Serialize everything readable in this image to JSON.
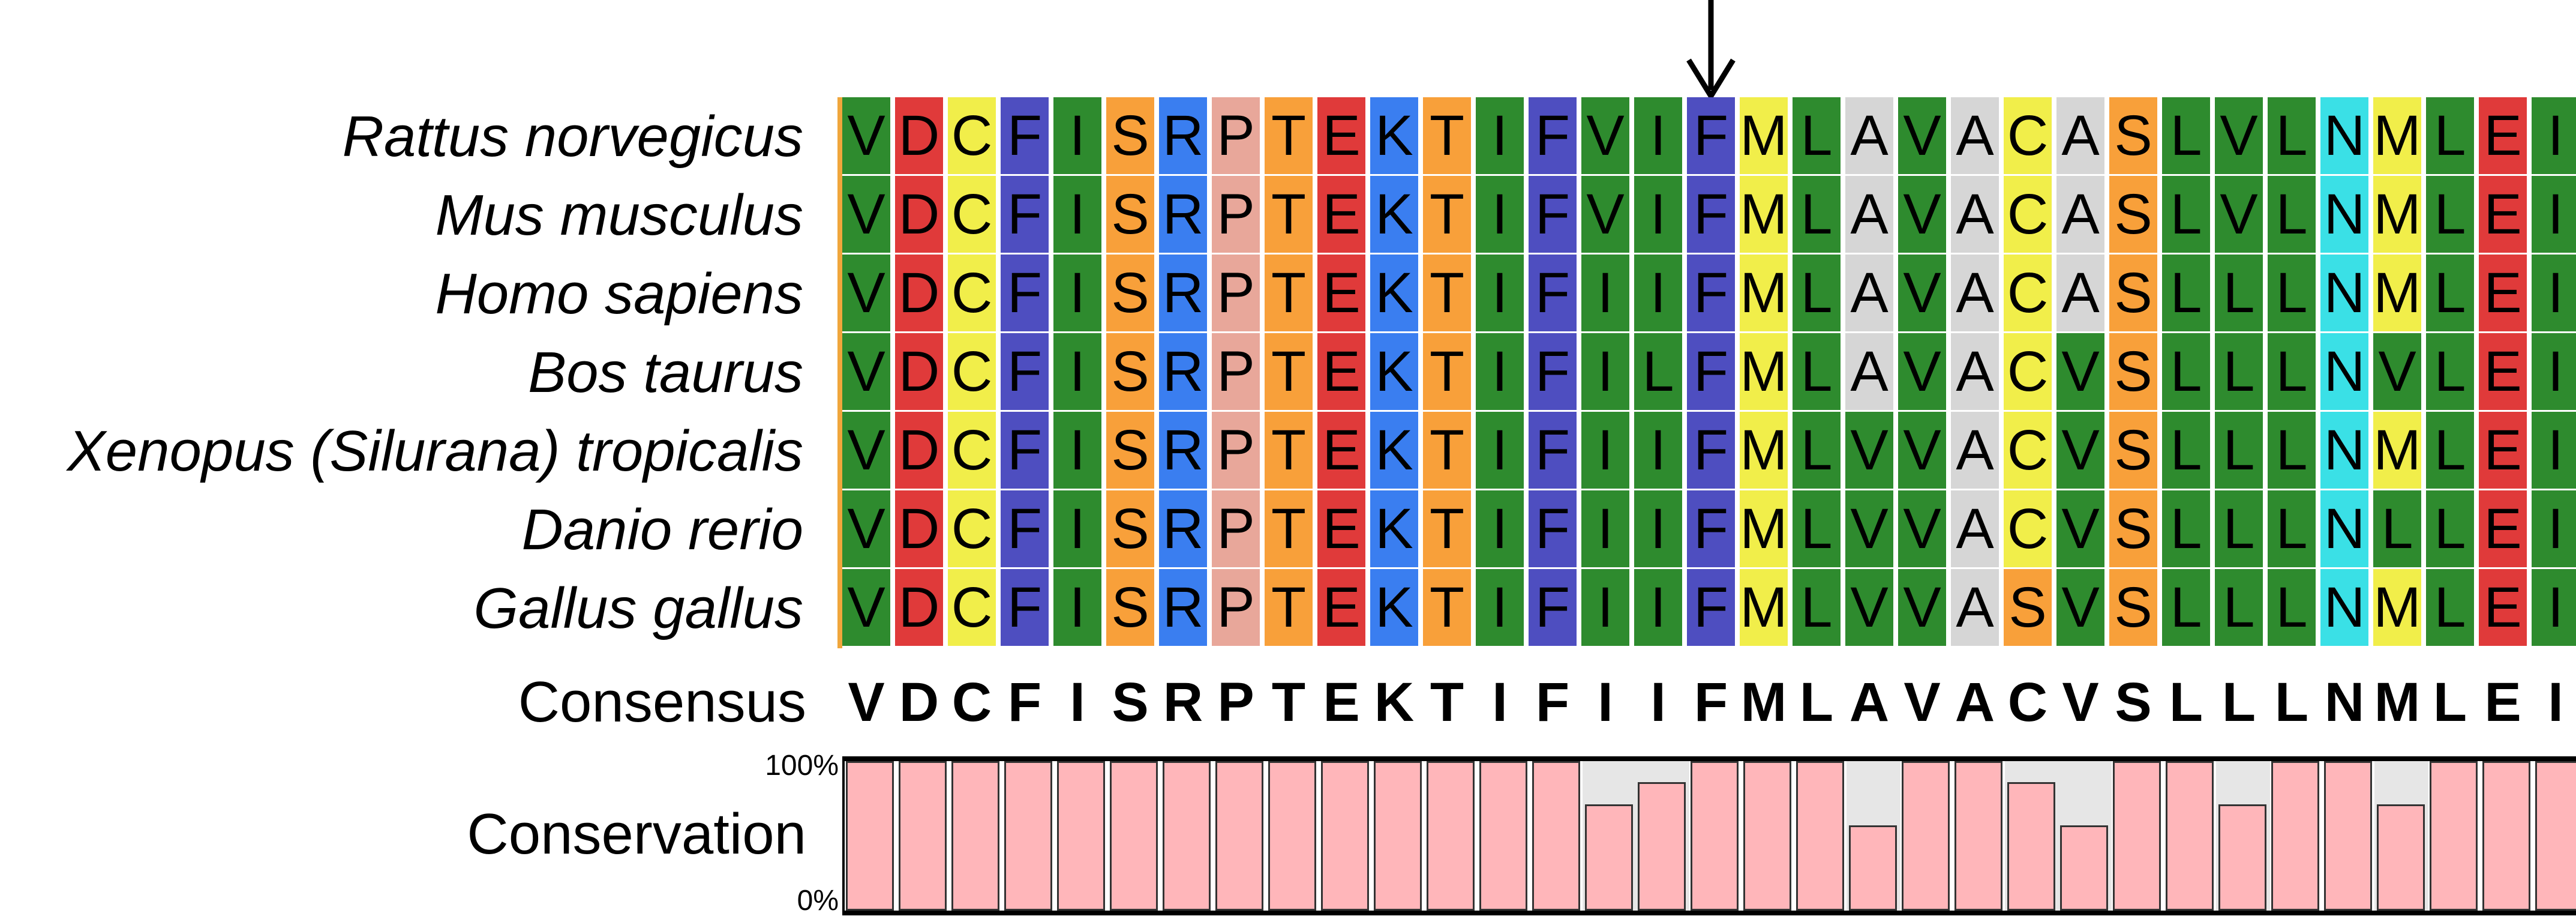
{
  "alignment": {
    "rows": [
      {
        "species": "Rattus norvegicus",
        "sequence": "VDCFISRPTEKTIFVIFMLAVACASLVLNMLEI"
      },
      {
        "species": "Mus musculus",
        "sequence": "VDCFISRPTEKTIFVIFMLAVACASLVLNMLEI"
      },
      {
        "species": "Homo sapiens",
        "sequence": "VDCFISRPTEKTIFIIFMLAVACASLLLNMLEI"
      },
      {
        "species": "Bos taurus",
        "sequence": "VDCFISRPTEKTIFILFMLAVACVSLLLNVLEI"
      },
      {
        "species": "Xenopus (Silurana) tropicalis",
        "sequence": "VDCFISRPTEKTIFIIFMLVVACVSLLLNMLEI"
      },
      {
        "species": "Danio rerio",
        "sequence": "VDCFISRPTEKTIFIIFMLVVACVSLLLNLLEI"
      },
      {
        "species": "Gallus gallus",
        "sequence": "VDCFISRPTEKTIFIIFMLVVASVSLLLNMLEI"
      }
    ],
    "consensus_label": "Consensus",
    "consensus": "VDCFISRPTEKTIFIIFMLAVACVSLLLNMLEI",
    "conservation_label": "Conservation",
    "conservation_max_label": "100%",
    "conservation_min_label": "0%",
    "conservation": [
      1,
      1,
      1,
      1,
      1,
      1,
      1,
      1,
      1,
      1,
      1,
      1,
      1,
      1,
      0.71,
      0.86,
      1,
      1,
      1,
      0.57,
      1,
      1,
      0.86,
      0.57,
      1,
      1,
      0.71,
      1,
      1,
      0.71,
      1,
      1,
      1
    ],
    "marked_column_index": 16,
    "residue_colors": {
      "V": "#2e8b2e",
      "I": "#2e8b2e",
      "L": "#2e8b2e",
      "D": "#e03a3a",
      "E": "#e03a3a",
      "C": "#f1ee4a",
      "M": "#f1ee4a",
      "F": "#4e4ec0",
      "S": "#f8a03a",
      "T": "#f8a03a",
      "R": "#3a7ef0",
      "K": "#3a7ef0",
      "P": "#e8a79a",
      "A": "#d6d6d6",
      "N": "#3ae0e6"
    },
    "colors": {
      "conservation_bar": "#ffb6ba",
      "conservation_gap": "#e6e6e6",
      "arrow": "#000000"
    }
  }
}
